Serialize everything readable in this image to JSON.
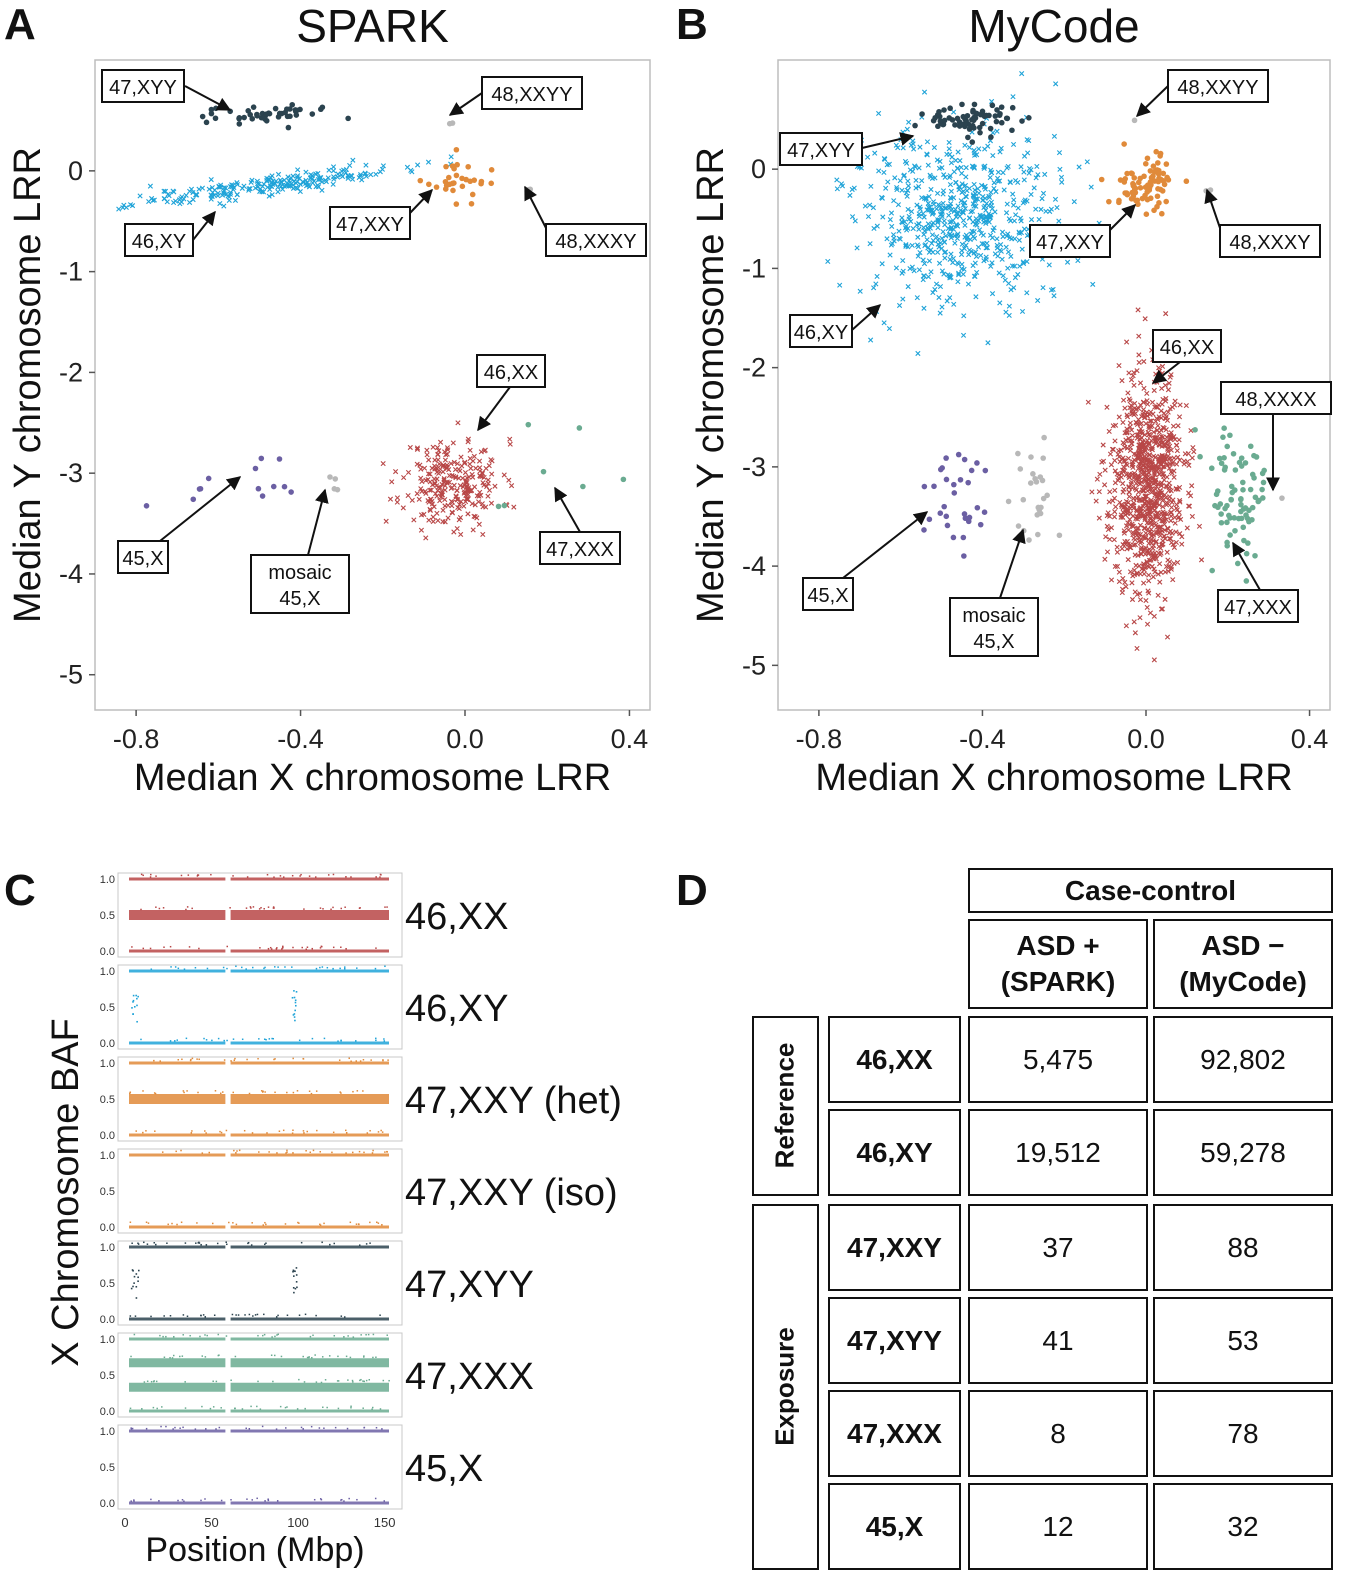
{
  "panel_letters": {
    "a": "A",
    "b": "B",
    "c": "C",
    "d": "D"
  },
  "colors": {
    "46,XX": "#b84747",
    "46,XY": "#1fa3d8",
    "47,XXY": "#e08a3a",
    "47,XYY": "#2b434f",
    "47,XXX": "#6aab91",
    "45,X": "#6b5fa3",
    "other": "#b8b8b8"
  },
  "chart_data": [
    {
      "type": "scatter",
      "title": "SPARK",
      "xlabel": "Median X chromosome LRR",
      "ylabel": "Median Y chromosome LRR",
      "xlim": [
        -0.9,
        0.45
      ],
      "ylim": [
        -5.35,
        1.1
      ],
      "xticks": [
        "-0.8",
        "-0.4",
        "0.0",
        "0.4"
      ],
      "xtick_values": [
        -0.8,
        -0.4,
        0.0,
        0.4
      ],
      "yticks": [
        "0",
        "-1",
        "-2",
        "-3",
        "-4",
        "-5"
      ],
      "ytick_values": [
        0,
        -1,
        -2,
        -3,
        -4,
        -5
      ],
      "grid": false,
      "clusters": [
        {
          "label": "46,XX",
          "center": [
            -0.03,
            -3.1
          ],
          "spread": [
            0.06,
            0.22
          ],
          "n": 260,
          "marker": "x"
        },
        {
          "label": "46,XY",
          "center": [
            -0.48,
            -0.14
          ],
          "spread": [
            0.16,
            0.05
          ],
          "n": 230,
          "marker": "x",
          "tilt": 0.55
        },
        {
          "label": "47,XXY",
          "center": [
            -0.03,
            -0.1
          ],
          "spread": [
            0.04,
            0.1
          ],
          "n": 30,
          "marker": "dot"
        },
        {
          "label": "47,XYY",
          "center": [
            -0.48,
            0.57
          ],
          "spread": [
            0.07,
            0.05
          ],
          "n": 45,
          "marker": "dot"
        },
        {
          "label": "47,XXX",
          "center": [
            0.2,
            -3.1
          ],
          "spread": [
            0.06,
            0.3
          ],
          "n": 9,
          "marker": "dot"
        },
        {
          "label": "45,X",
          "center": [
            -0.52,
            -3.15
          ],
          "spread": [
            0.09,
            0.15
          ],
          "n": 13,
          "marker": "dot"
        },
        {
          "label": "mosaic 45,X",
          "center": [
            -0.31,
            -3.15
          ],
          "spread": [
            0.02,
            0.05
          ],
          "n": 4,
          "marker": "dot"
        },
        {
          "label": "48,XXYY",
          "center": [
            -0.03,
            0.49
          ],
          "spread": [
            0.01,
            0.01
          ],
          "n": 2,
          "marker": "dot"
        },
        {
          "label": "48,XXXY",
          "center": [
            0.15,
            -0.19
          ],
          "spread": [
            0.01,
            0.01
          ],
          "n": 2,
          "marker": "dot"
        }
      ],
      "annotations": [
        "47,XYY",
        "48,XXYY",
        "46,XY",
        "47,XXY",
        "48,XXXY",
        "46,XX",
        "45,X",
        "mosaic\n45,X",
        "47,XXX"
      ]
    },
    {
      "type": "scatter",
      "title": "MyCode",
      "xlabel": "Median X chromosome LRR",
      "ylabel": "Median Y chromosome LRR",
      "xlim": [
        -0.9,
        0.45
      ],
      "ylim": [
        -5.45,
        1.1
      ],
      "xticks": [
        "-0.8",
        "-0.4",
        "0.0",
        "0.4"
      ],
      "xtick_values": [
        -0.8,
        -0.4,
        0.0,
        0.4
      ],
      "yticks": [
        "0",
        "-1",
        "-2",
        "-3",
        "-4",
        "-5"
      ],
      "ytick_values": [
        0,
        -1,
        -2,
        -3,
        -4,
        -5
      ],
      "grid": false,
      "clusters": [
        {
          "label": "46,XX",
          "center": [
            0.0,
            -3.2
          ],
          "spread": [
            0.045,
            0.55
          ],
          "n": 900,
          "marker": "x"
        },
        {
          "label": "46,XY",
          "center": [
            -0.45,
            -0.5
          ],
          "spread": [
            0.12,
            0.45
          ],
          "n": 650,
          "marker": "x"
        },
        {
          "label": "47,XXY",
          "center": [
            0.0,
            -0.15
          ],
          "spread": [
            0.04,
            0.12
          ],
          "n": 80,
          "marker": "dot"
        },
        {
          "label": "47,XYY",
          "center": [
            -0.42,
            0.5
          ],
          "spread": [
            0.06,
            0.07
          ],
          "n": 70,
          "marker": "dot"
        },
        {
          "label": "47,XXX",
          "center": [
            0.22,
            -3.3
          ],
          "spread": [
            0.04,
            0.3
          ],
          "n": 78,
          "marker": "dot"
        },
        {
          "label": "45,X",
          "center": [
            -0.47,
            -3.3
          ],
          "spread": [
            0.05,
            0.25
          ],
          "n": 32,
          "marker": "dot"
        },
        {
          "label": "mosaic 45,X",
          "center": [
            -0.27,
            -3.3
          ],
          "spread": [
            0.03,
            0.25
          ],
          "n": 25,
          "marker": "dot"
        },
        {
          "label": "48,XXYY",
          "center": [
            -0.04,
            0.5
          ],
          "spread": [
            0.005,
            0.01
          ],
          "n": 1,
          "marker": "dot"
        },
        {
          "label": "48,XXXY",
          "center": [
            0.15,
            -0.2
          ],
          "spread": [
            0.01,
            0.01
          ],
          "n": 2,
          "marker": "dot"
        },
        {
          "label": "48,XXXX",
          "center": [
            0.34,
            -3.3
          ],
          "spread": [
            0.005,
            0.01
          ],
          "n": 1,
          "marker": "dot"
        }
      ],
      "annotations": [
        "48,XXYY",
        "47,XYY",
        "47,XXY",
        "48,XXXY",
        "46,XY",
        "46,XX",
        "48,XXXX",
        "45,X",
        "mosaic\n45,X",
        "47,XXX"
      ]
    },
    {
      "type": "scatter",
      "title": "",
      "xlabel": "Position (Mbp)",
      "ylabel": "X Chromosome BAF",
      "xlim": [
        0,
        156
      ],
      "ylim": [
        0,
        1
      ],
      "xticks": [
        "0",
        "50",
        "100",
        "150"
      ],
      "xtick_values": [
        0,
        50,
        100,
        150
      ],
      "yticks": [
        "1.0",
        "0.5",
        "0.0"
      ],
      "ytick_values": [
        1.0,
        0.5,
        0.0
      ],
      "series": [
        {
          "name": "46,XX",
          "bands": [
            0,
            0.5,
            1
          ]
        },
        {
          "name": "46,XY",
          "bands": [
            0,
            1
          ]
        },
        {
          "name": "47,XXY (het)",
          "bands": [
            0,
            0.5,
            1
          ]
        },
        {
          "name": "47,XXY (iso)",
          "bands": [
            0,
            1
          ]
        },
        {
          "name": "47,XYY",
          "bands": [
            0,
            1
          ]
        },
        {
          "name": "47,XXX",
          "bands": [
            0,
            0.33,
            0.67,
            1
          ]
        },
        {
          "name": "45,X",
          "bands": [
            0,
            1
          ]
        }
      ]
    }
  ],
  "table": {
    "header": "Case-control",
    "col1": "ASD +\n(SPARK)",
    "col2": "ASD −\n(MyCode)",
    "groups": [
      {
        "label": "Reference",
        "rows": [
          {
            "name": "46,XX",
            "spark": "5,475",
            "mycode": "92,802"
          },
          {
            "name": "46,XY",
            "spark": "19,512",
            "mycode": "59,278"
          }
        ]
      },
      {
        "label": "Exposure",
        "rows": [
          {
            "name": "47,XXY",
            "spark": "37",
            "mycode": "88"
          },
          {
            "name": "47,XYY",
            "spark": "41",
            "mycode": "53"
          },
          {
            "name": "47,XXX",
            "spark": "8",
            "mycode": "78"
          },
          {
            "name": "45,X",
            "spark": "12",
            "mycode": "32"
          }
        ]
      }
    ]
  }
}
